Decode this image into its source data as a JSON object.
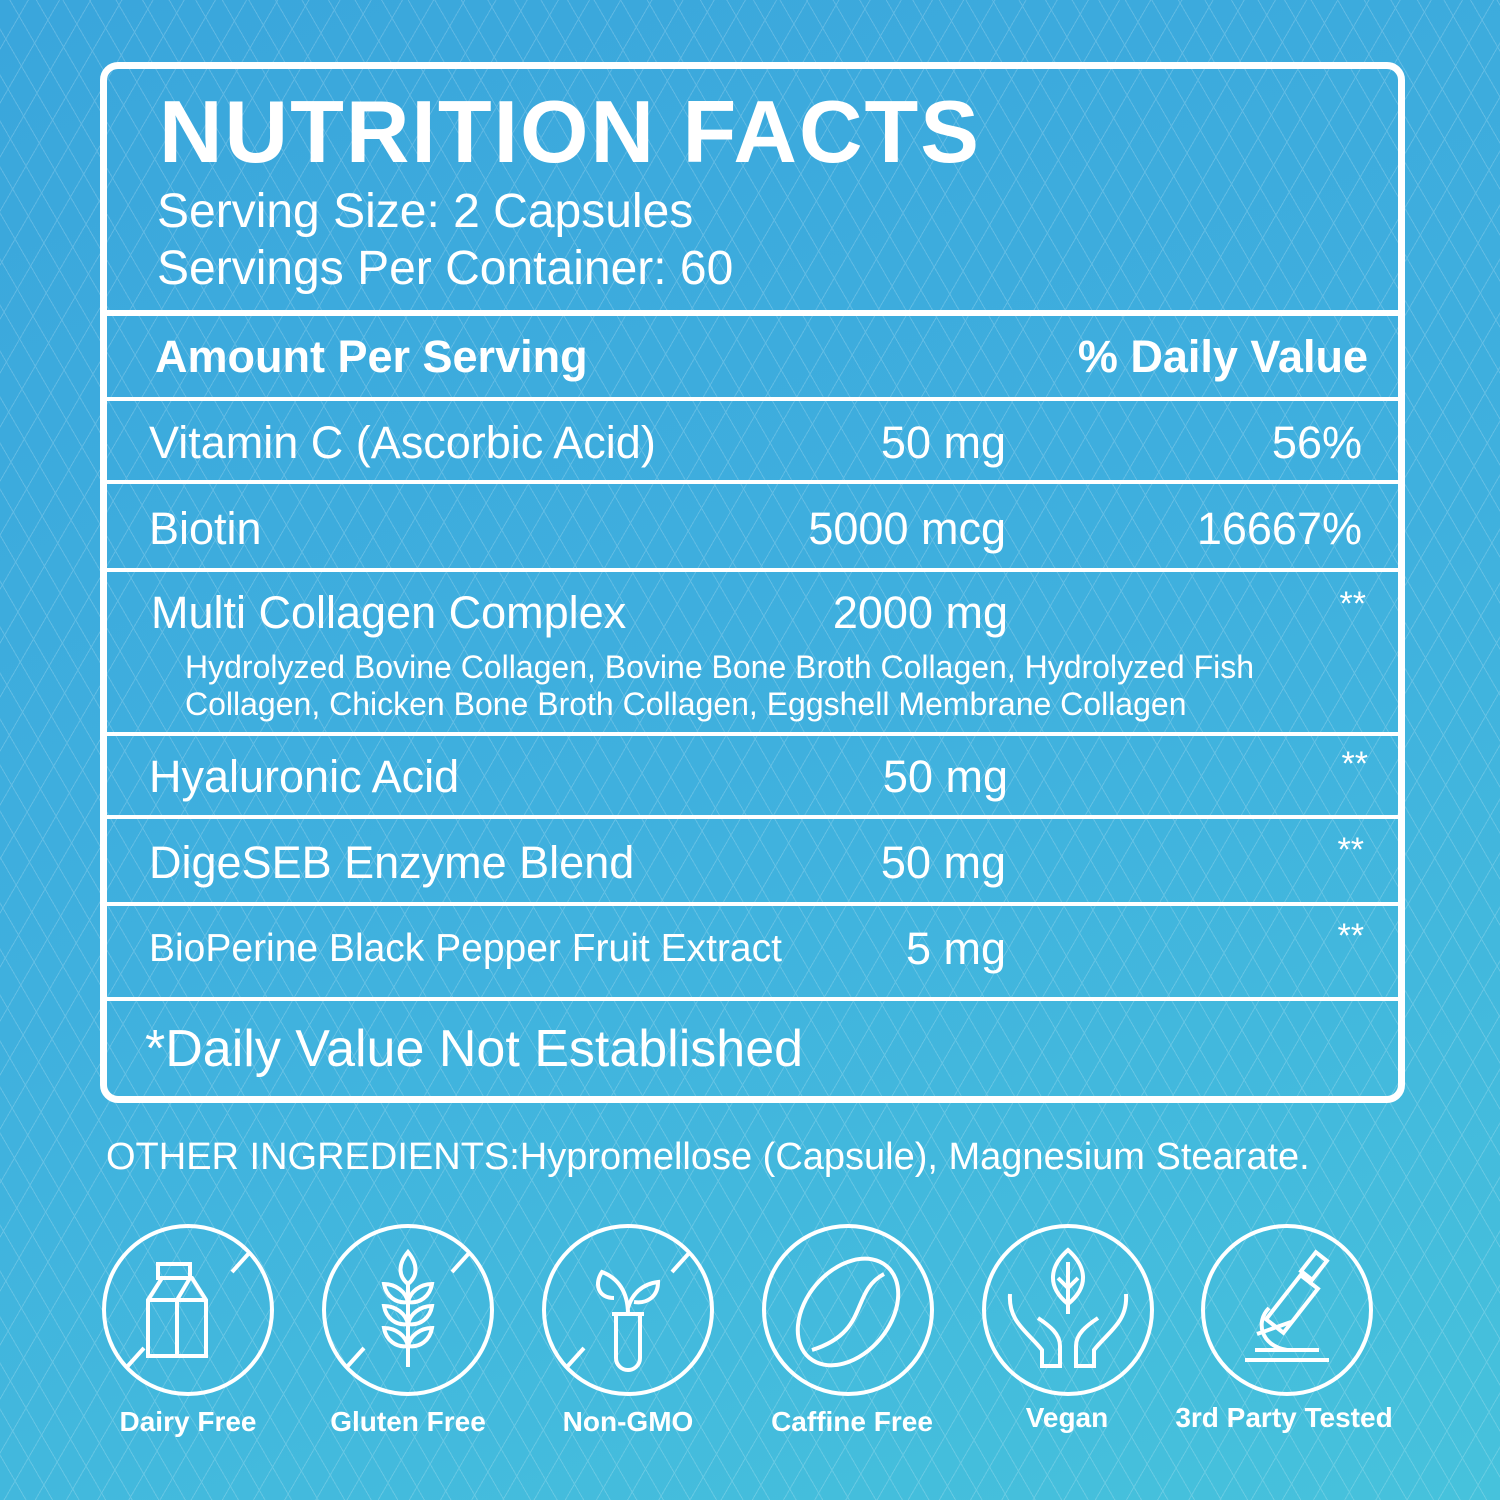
{
  "title": "NUTRITION FACTS",
  "serving_size": "Serving Size: 2 Capsules",
  "servings_per_container": "Servings Per Container: 60",
  "header": {
    "amount": "Amount Per Serving",
    "dv": "% Daily Value"
  },
  "rows": [
    {
      "name": "Vitamin C (Ascorbic Acid)",
      "amount": "50 mg",
      "dv": "56%"
    },
    {
      "name": "Biotin",
      "amount": "5000 mcg",
      "dv": "16667%"
    },
    {
      "name": "Multi Collagen Complex",
      "amount": "2000 mg",
      "dv": "**",
      "sub1": "Hydrolyzed Bovine Collagen, Bovine Bone Broth Collagen, Hydrolyzed Fish",
      "sub2": "Collagen, Chicken Bone Broth Collagen, Eggshell Membrane Collagen"
    },
    {
      "name": "Hyaluronic Acid",
      "amount": "50 mg",
      "dv": "**"
    },
    {
      "name": "DigeSEB Enzyme Blend",
      "amount": "50 mg",
      "dv": "**"
    },
    {
      "name": "BioPerine Black Pepper Fruit Extract",
      "amount": "5 mg",
      "dv": "**"
    }
  ],
  "footnote": "*Daily Value Not Established",
  "other_ingredients": "OTHER INGREDIENTS:Hypromellose (Capsule), Magnesium Stearate.",
  "badges": [
    {
      "label": "Dairy Free",
      "icon": "milk-carton-crossed"
    },
    {
      "label": "Gluten Free",
      "icon": "wheat-crossed"
    },
    {
      "label": "Non-GMO",
      "icon": "plant-test-tube-crossed"
    },
    {
      "label": "Caffine Free",
      "icon": "coffee-bean"
    },
    {
      "label": "Vegan",
      "icon": "leaf-hands"
    },
    {
      "label": "3rd Party Tested",
      "icon": "microscope"
    }
  ],
  "colors": {
    "background": "#3fb0de",
    "foreground": "#ffffff"
  }
}
